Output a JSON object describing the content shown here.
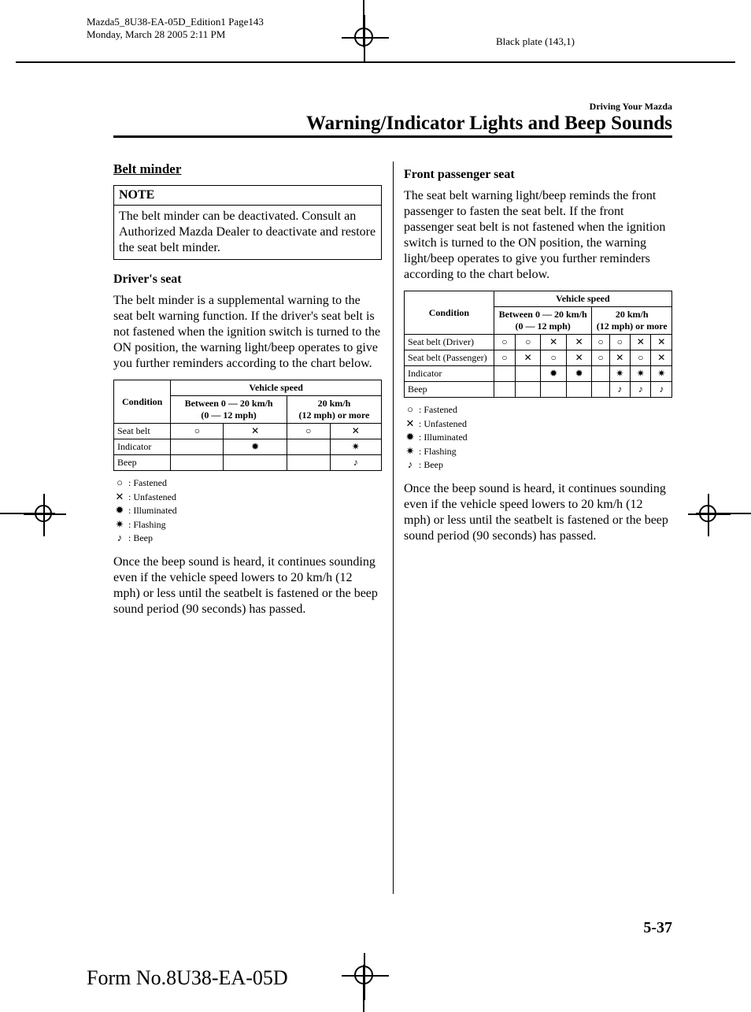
{
  "meta": {
    "line1": "Mazda5_8U38-EA-05D_Edition1 Page143",
    "line2": "Monday, March 28 2005 2:11 PM",
    "black_plate": "Black plate (143,1)"
  },
  "chapter": {
    "over": "Driving Your Mazda",
    "main": "Warning/Indicator Lights and Beep Sounds"
  },
  "symbols": {
    "fastened": "○",
    "unfastened": "✕",
    "illuminated": "✹",
    "flashing": "✷",
    "beep": "♪"
  },
  "left": {
    "h3": "Belt minder",
    "note_head": "NOTE",
    "note_body": "The belt minder can be deactivated. Consult an Authorized Mazda Dealer to deactivate and restore the seat belt minder.",
    "h4": "Driver's seat",
    "p1": "The belt minder is a supplemental warning to the seat belt warning function. If the driver's seat belt is not fastened when the ignition switch is turned to the ON position, the warning light/beep operates to give you further reminders according to the chart below.",
    "table": {
      "head_condition": "Condition",
      "head_vehicle": "Vehicle speed",
      "head_low": "Between 0 — 20 km/h\n(0 — 12 mph)",
      "head_high": "20 km/h\n(12 mph) or more",
      "rows": [
        {
          "label": "Seat belt",
          "cells": [
            "○",
            "✕",
            "○",
            "✕"
          ]
        },
        {
          "label": "Indicator",
          "cells": [
            "",
            "✹",
            "",
            "✷"
          ]
        },
        {
          "label": "Beep",
          "cells": [
            "",
            "",
            "",
            "♪"
          ]
        }
      ]
    },
    "legend": {
      "fastened": " : Fastened",
      "unfastened": " : Unfastened",
      "illuminated": " : Illuminated",
      "flashing": " : Flashing",
      "beep": " : Beep"
    },
    "p2": "Once the beep sound is heard, it continues sounding even if the vehicle speed lowers to 20 km/h (12 mph) or less until the seatbelt is fastened or the beep sound period (90 seconds) has passed."
  },
  "right": {
    "h4": "Front passenger seat",
    "p1": "The seat belt warning light/beep reminds the front passenger to fasten the seat belt. If the front passenger seat belt is not fastened when the ignition switch is turned to the ON position, the warning light/beep operates to give you further reminders according to the chart below.",
    "table": {
      "head_condition": "Condition",
      "head_vehicle": "Vehicle speed",
      "head_low": "Between 0 — 20 km/h\n(0 — 12 mph)",
      "head_high": "20 km/h\n(12 mph) or more",
      "rows": [
        {
          "label": "Seat belt (Driver)",
          "cells": [
            "○",
            "○",
            "✕",
            "✕",
            "○",
            "○",
            "✕",
            "✕"
          ]
        },
        {
          "label": "Seat belt (Passenger)",
          "cells": [
            "○",
            "✕",
            "○",
            "✕",
            "○",
            "✕",
            "○",
            "✕"
          ]
        },
        {
          "label": "Indicator",
          "cells": [
            "",
            "",
            "✹",
            "✹",
            "",
            "✷",
            "✷",
            "✷"
          ]
        },
        {
          "label": "Beep",
          "cells": [
            "",
            "",
            "",
            "",
            "",
            "♪",
            "♪",
            "♪"
          ]
        }
      ]
    },
    "legend": {
      "fastened": " : Fastened",
      "unfastened": " : Unfastened",
      "illuminated": " : Illuminated",
      "flashing": " : Flashing",
      "beep": " : Beep"
    },
    "p2": "Once the beep sound is heard, it continues sounding even if the vehicle speed lowers to 20 km/h (12 mph) or less until the seatbelt is fastened or the beep sound period (90 seconds) has passed."
  },
  "footer": {
    "page": "5-37",
    "form": "Form No.8U38-EA-05D"
  }
}
